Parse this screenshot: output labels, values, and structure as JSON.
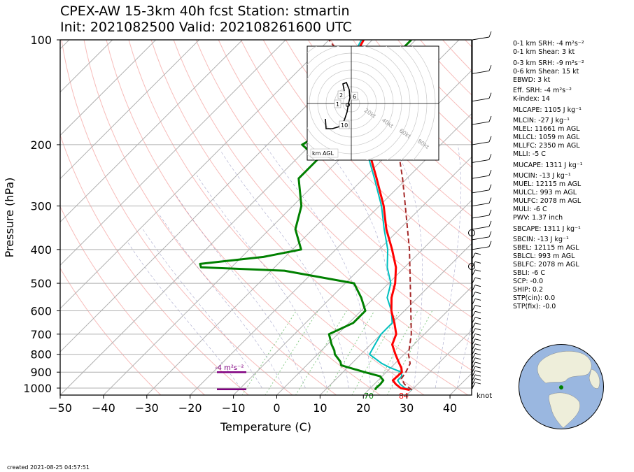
{
  "title_line1": "CPEX-AW 15-3km  40h fcst  Station: stmartin",
  "title_line2": "Init: 2021082500  Valid: 202108261600 UTC",
  "created": "created 2021-08-25 04:57:51",
  "chart_data": {
    "type": "line",
    "subtype": "skew-T log-p",
    "xlabel": "Temperature (C)",
    "ylabel": "Pressure (hPa)",
    "xlim": [
      -50,
      45
    ],
    "ylim": [
      1050,
      100
    ],
    "y_scale": "log",
    "xticks": [
      -50,
      -40,
      -30,
      -20,
      -10,
      0,
      10,
      20,
      30,
      40
    ],
    "yticks": [
      1000,
      900,
      800,
      700,
      600,
      500,
      400,
      300,
      200,
      100
    ],
    "grid": true,
    "colors": {
      "temperature": "#ff0000",
      "dewpoint": "#008000",
      "virtual": "#00bfbf",
      "parcel": "#a52a2a",
      "srh": "#800080"
    },
    "temperature": [
      [
        1012,
        29.5
      ],
      [
        1000,
        27
      ],
      [
        975,
        25
      ],
      [
        950,
        23.4
      ],
      [
        925,
        23.5
      ],
      [
        900,
        23.6
      ],
      [
        875,
        22.5
      ],
      [
        850,
        21
      ],
      [
        800,
        18
      ],
      [
        750,
        15
      ],
      [
        700,
        13.5
      ],
      [
        650,
        10.5
      ],
      [
        600,
        7
      ],
      [
        550,
        4
      ],
      [
        500,
        1.5
      ],
      [
        450,
        -2
      ],
      [
        400,
        -7
      ],
      [
        350,
        -13
      ],
      [
        300,
        -19
      ],
      [
        250,
        -27
      ],
      [
        200,
        -37
      ],
      [
        150,
        -51
      ],
      [
        125,
        -58.5
      ],
      [
        100,
        -62
      ]
    ],
    "dewpoint": [
      [
        1012,
        21.5
      ],
      [
        1000,
        21.3
      ],
      [
        975,
        21.4
      ],
      [
        950,
        21.2
      ],
      [
        925,
        19.5
      ],
      [
        900,
        15
      ],
      [
        860,
        8
      ],
      [
        840,
        7
      ],
      [
        800,
        4
      ],
      [
        780,
        3
      ],
      [
        750,
        1
      ],
      [
        700,
        -2
      ],
      [
        650,
        1
      ],
      [
        600,
        1
      ],
      [
        550,
        -3
      ],
      [
        500,
        -8
      ],
      [
        460,
        -27
      ],
      [
        450,
        -47
      ],
      [
        440,
        -48
      ],
      [
        420,
        -35
      ],
      [
        400,
        -28
      ],
      [
        350,
        -34
      ],
      [
        300,
        -38
      ],
      [
        250,
        -45
      ],
      [
        220,
        -45
      ],
      [
        200,
        -52
      ],
      [
        170,
        -48
      ],
      [
        150,
        -52
      ],
      [
        125,
        -54
      ],
      [
        110,
        -51
      ],
      [
        100,
        -51
      ]
    ],
    "virtual_temperature": [
      [
        1012,
        30
      ],
      [
        1000,
        28
      ],
      [
        975,
        26
      ],
      [
        950,
        24.5
      ],
      [
        925,
        24.5
      ],
      [
        900,
        23.5
      ],
      [
        875,
        20
      ],
      [
        850,
        17
      ],
      [
        800,
        12
      ],
      [
        750,
        11
      ],
      [
        700,
        10
      ],
      [
        650,
        10
      ],
      [
        600,
        7
      ],
      [
        550,
        3
      ],
      [
        500,
        0.5
      ],
      [
        450,
        -4
      ],
      [
        400,
        -8
      ],
      [
        350,
        -13.5
      ],
      [
        300,
        -19.5
      ],
      [
        250,
        -27.5
      ],
      [
        200,
        -37.5
      ],
      [
        150,
        -51.5
      ],
      [
        125,
        -59
      ],
      [
        100,
        -62.5
      ]
    ],
    "parcel": [
      [
        1012,
        30
      ],
      [
        975,
        27
      ],
      [
        940,
        25
      ],
      [
        900,
        24.5
      ],
      [
        850,
        23.5
      ],
      [
        800,
        21
      ],
      [
        700,
        17
      ],
      [
        600,
        11.5
      ],
      [
        500,
        5
      ],
      [
        400,
        -3
      ],
      [
        300,
        -14
      ],
      [
        250,
        -21
      ],
      [
        200,
        -30
      ],
      [
        150,
        -45
      ],
      [
        100,
        -70
      ]
    ],
    "sfc_temp_label": "84",
    "sfc_dewpoint_label": "70",
    "srh_label": "-4 m²s⁻²",
    "barb_units": "knot",
    "hodograph": {
      "ring_labels": [
        "20kt",
        "40kt",
        "60kt",
        "80kt"
      ],
      "height_markers": [
        "1",
        "2",
        "6",
        "10"
      ],
      "box_label": "km AGL"
    },
    "indices": [
      "0-1 km SRH: -4 m²s⁻²",
      "0-1 km Shear: 3 kt",
      "0-3 km SRH: -9 m²s⁻²",
      "0-6 km Shear: 15 kt",
      "EBWD: 3 kt",
      "Eff. SRH: -4 m²s⁻²",
      "K-index: 14",
      "MLCAPE: 1105 J kg⁻¹",
      "MLCIN: -27 J kg⁻¹",
      "MLEL: 11661 m AGL",
      "MLLCL: 1059 m AGL",
      "MLLFC: 2350 m AGL",
      "MLLI: -5 C",
      "MUCAPE: 1311 J kg⁻¹",
      "MUCIN: -13 J kg⁻¹",
      "MUEL: 12115 m AGL",
      "MULCL: 993 m AGL",
      "MULFC: 2078 m AGL",
      "MULI: -6 C",
      "PWV: 1.37 inch",
      "SBCAPE: 1311 J kg⁻¹",
      "SBCIN: -13 J kg⁻¹",
      "SBEL: 12115 m AGL",
      "SBLCL: 993 m AGL",
      "SBLFC: 2078 m AGL",
      "SBLI: -6 C",
      "SCP: -0.0",
      "SHIP: 0.2",
      "STP(cin): 0.0",
      "STP(fix): -0.0"
    ]
  }
}
